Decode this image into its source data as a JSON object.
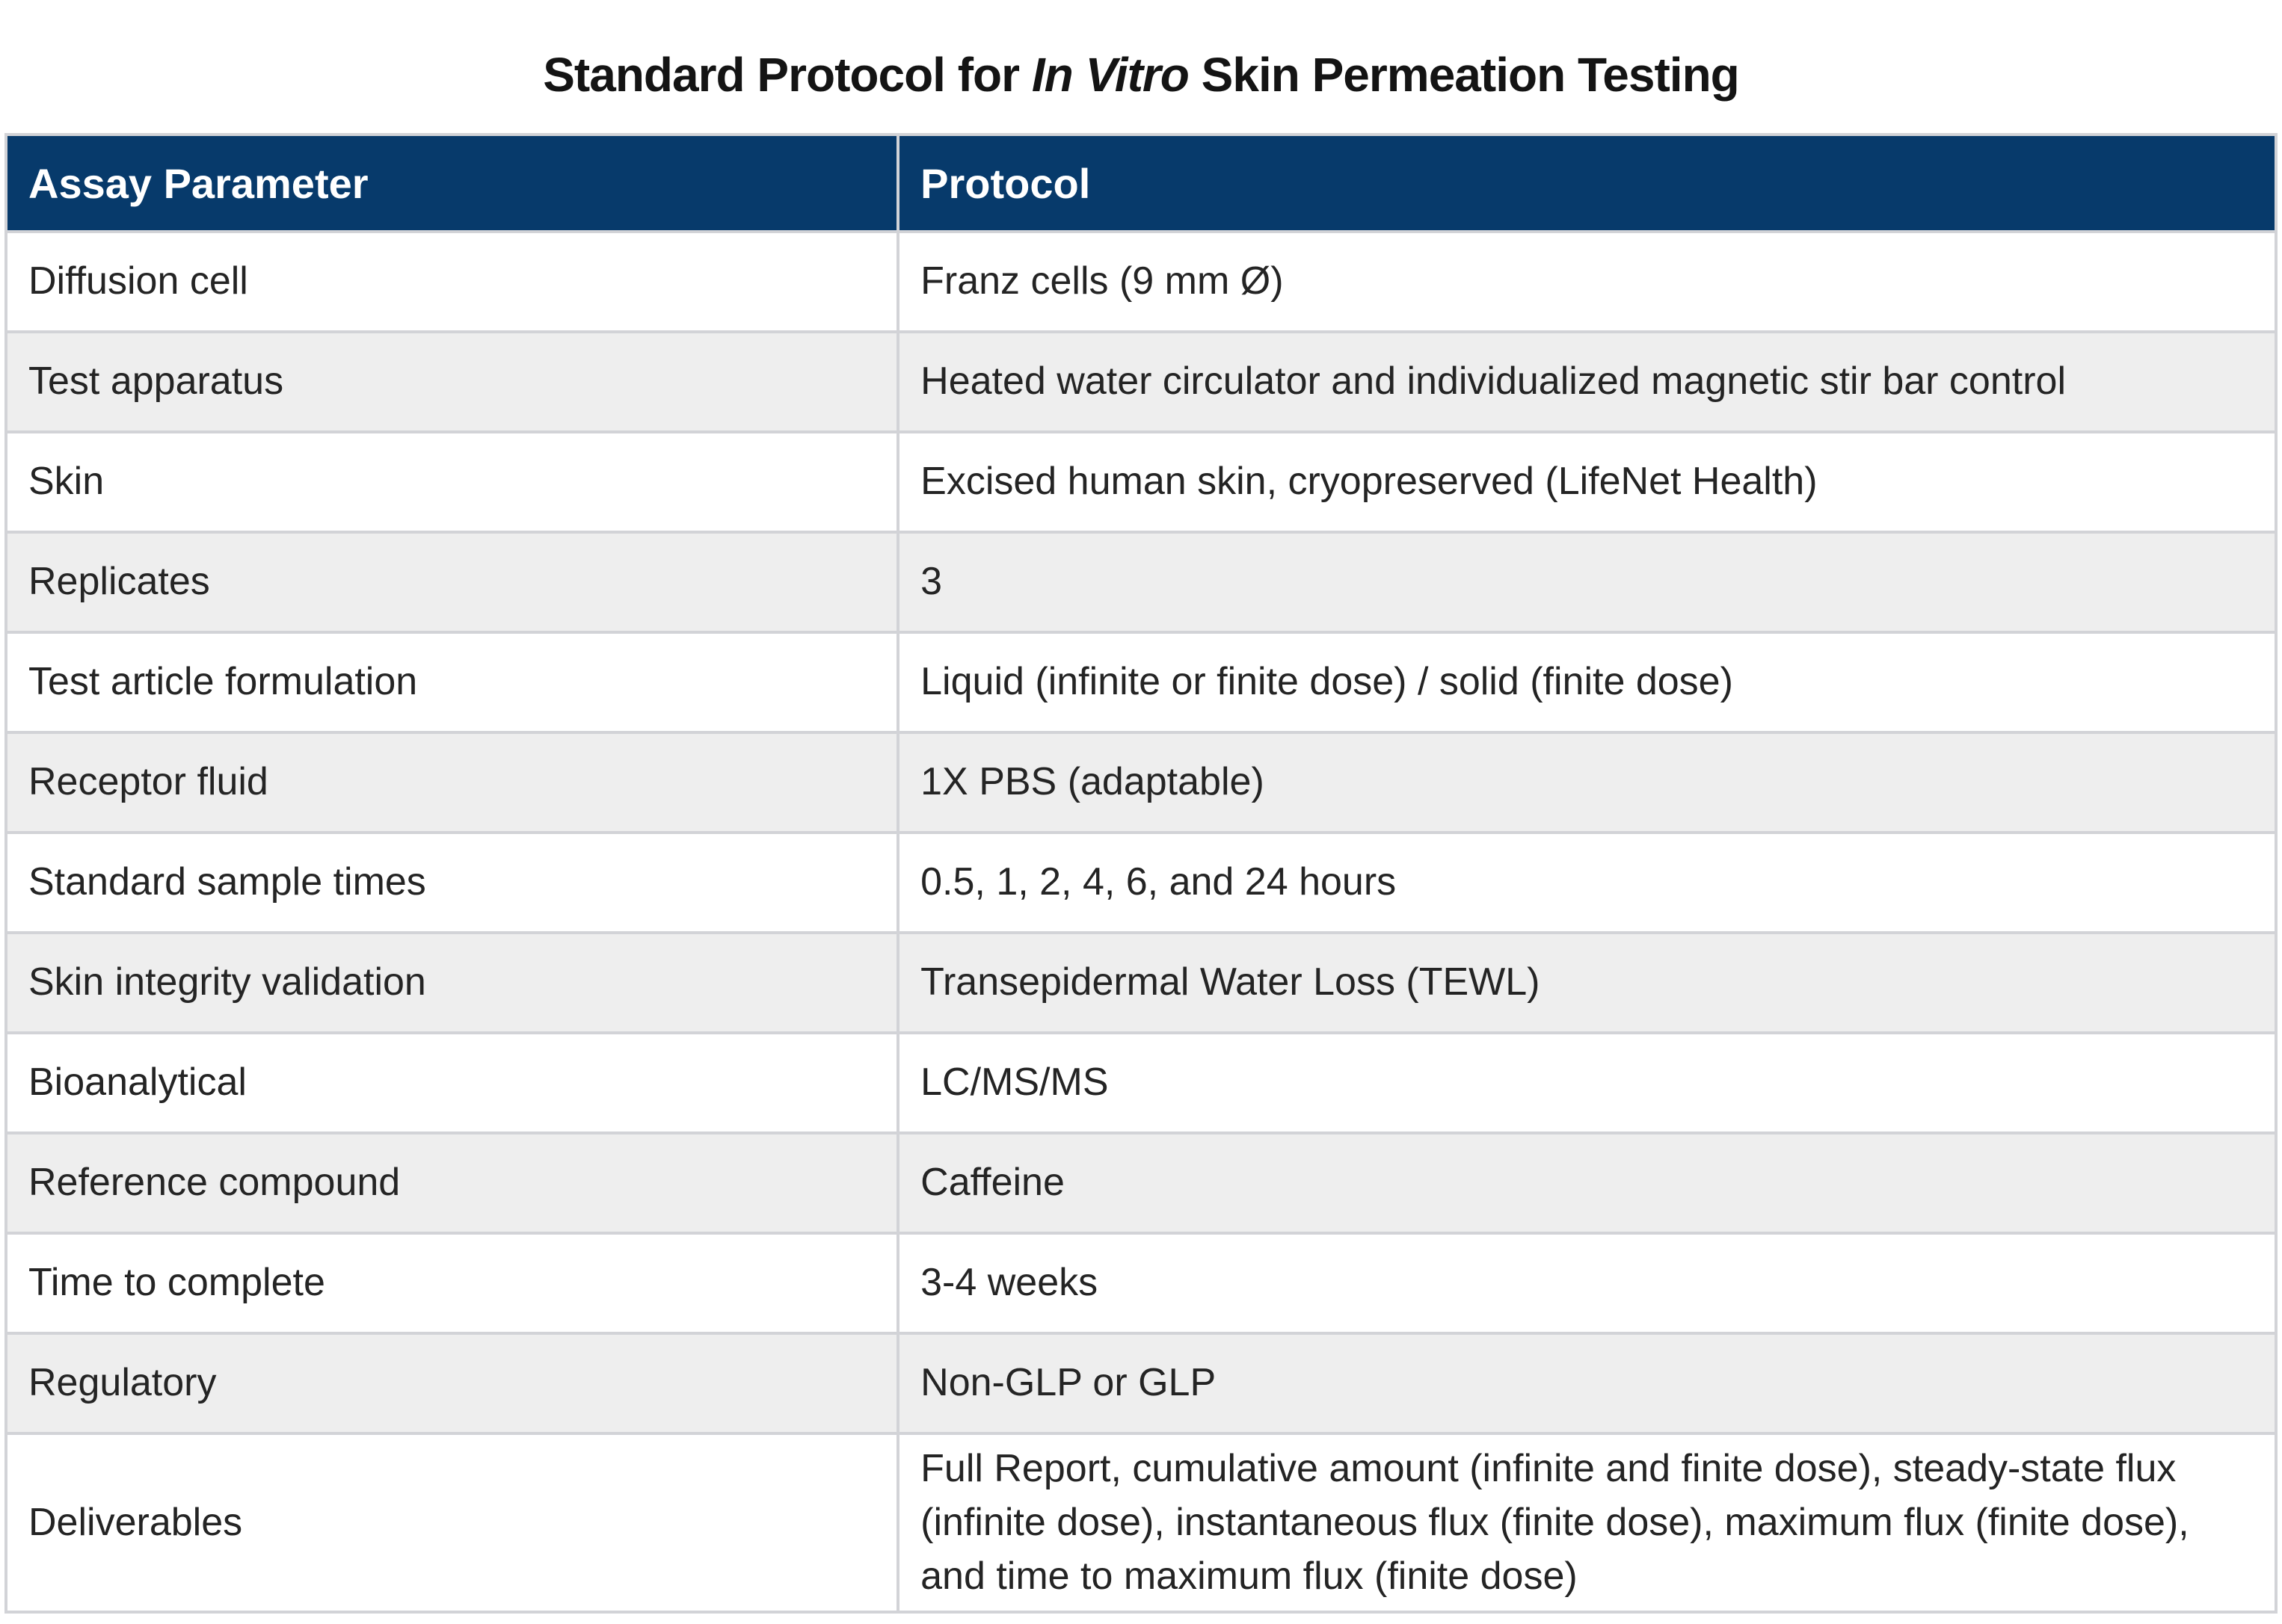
{
  "title": {
    "prefix": "Standard Protocol for ",
    "italic": "In Vitro",
    "suffix": " Skin Permeation Testing"
  },
  "table": {
    "columns": [
      "Assay Parameter",
      "Protocol"
    ],
    "rows": [
      {
        "parameter": "Diffusion cell",
        "protocol": "Franz cells (9 mm Ø)"
      },
      {
        "parameter": "Test apparatus",
        "protocol": "Heated water circulator and individualized magnetic stir bar control"
      },
      {
        "parameter": "Skin",
        "protocol": "Excised human skin, cryopreserved (LifeNet Health)"
      },
      {
        "parameter": "Replicates",
        "protocol": "3"
      },
      {
        "parameter": "Test article formulation",
        "protocol": "Liquid (infinite or finite dose) / solid (finite dose)"
      },
      {
        "parameter": "Receptor fluid",
        "protocol": "1X PBS (adaptable)"
      },
      {
        "parameter": "Standard sample times",
        "protocol": "0.5, 1, 2, 4, 6, and 24 hours"
      },
      {
        "parameter": "Skin integrity validation",
        "protocol": "Transepidermal Water Loss (TEWL)"
      },
      {
        "parameter": "Bioanalytical",
        "protocol": "LC/MS/MS"
      },
      {
        "parameter": "Reference compound",
        "protocol": "Caffeine"
      },
      {
        "parameter": "Time to complete",
        "protocol": "3-4 weeks"
      },
      {
        "parameter": "Regulatory",
        "protocol": "Non-GLP or GLP"
      },
      {
        "parameter": "Deliverables",
        "protocol": "Full Report, cumulative amount (infinite and finite dose), steady-state flux (infinite dose), instantaneous flux (finite dose), maximum flux (finite dose), and time to maximum flux (finite dose)"
      }
    ]
  },
  "colors": {
    "header_bg": "#073a6b",
    "header_text": "#ffffff",
    "row_alt_bg": "#eeeeee",
    "border": "#d2d3d7",
    "body_text": "#242424",
    "title_text": "#141414"
  }
}
